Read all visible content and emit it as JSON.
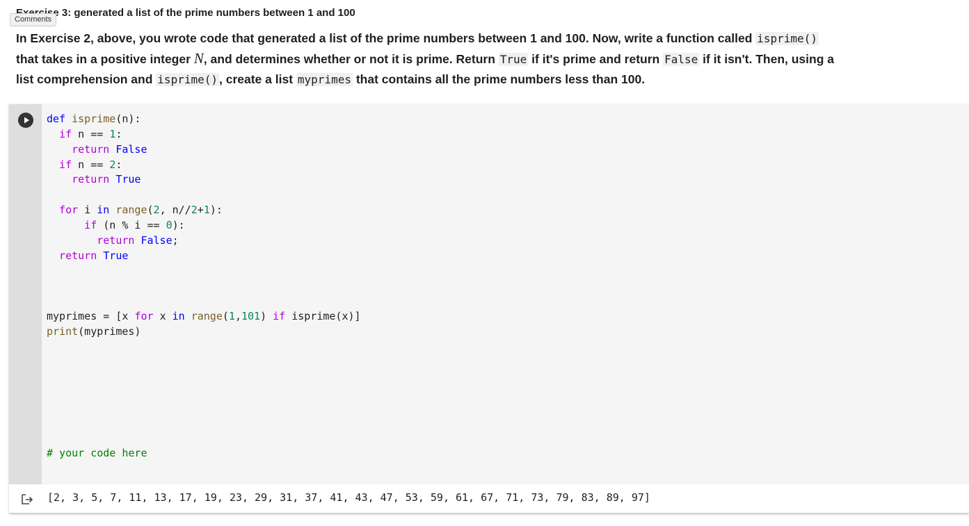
{
  "header": {
    "title": "Exercise 3: generated a list of the prime numbers between 1 and 100",
    "badge": "Comments"
  },
  "description": [
    {
      "text": "In Exercise 2, above, you wrote code that generated a list of the prime numbers between 1 and 100. Now, write a function called "
    },
    {
      "text": "isprime()",
      "style": "code"
    },
    {
      "text": " that takes in a positive integer "
    },
    {
      "text": "N",
      "style": "math"
    },
    {
      "text": ", and determines whether or not it is prime. Return "
    },
    {
      "text": "True",
      "style": "code"
    },
    {
      "text": " if it's prime and return "
    },
    {
      "text": "False",
      "style": "code"
    },
    {
      "text": " if it isn't. Then, using a list comprehension and "
    },
    {
      "text": "isprime()",
      "style": "code"
    },
    {
      "text": ", create a list "
    },
    {
      "text": "myprimes",
      "style": "code"
    },
    {
      "text": " that contains all the prime numbers less than 100."
    }
  ],
  "cell": {
    "lines": [
      [
        [
          "def ",
          "#0000ff"
        ],
        [
          "isprime",
          "#795e26"
        ],
        [
          "(n):",
          "#1f1f1f"
        ]
      ],
      [
        [
          "  if ",
          "#af00db"
        ],
        [
          "n == ",
          "#1f1f1f"
        ],
        [
          "1",
          "#098658"
        ],
        [
          ":",
          "#1f1f1f"
        ]
      ],
      [
        [
          "    return ",
          "#af00db"
        ],
        [
          "False",
          "#0000ff"
        ]
      ],
      [
        [
          "  if ",
          "#af00db"
        ],
        [
          "n == ",
          "#1f1f1f"
        ],
        [
          "2",
          "#098658"
        ],
        [
          ":",
          "#1f1f1f"
        ]
      ],
      [
        [
          "    return ",
          "#af00db"
        ],
        [
          "True",
          "#0000ff"
        ]
      ],
      [],
      [
        [
          "  for ",
          "#af00db"
        ],
        [
          "i ",
          "#1f1f1f"
        ],
        [
          "in ",
          "#0000ff"
        ],
        [
          "range",
          "#795e26"
        ],
        [
          "(",
          "#1f1f1f"
        ],
        [
          "2",
          "#098658"
        ],
        [
          ", n//",
          "#1f1f1f"
        ],
        [
          "2",
          "#098658"
        ],
        [
          "+",
          "#1f1f1f"
        ],
        [
          "1",
          "#098658"
        ],
        [
          "):",
          "#1f1f1f"
        ]
      ],
      [
        [
          "      if ",
          "#af00db"
        ],
        [
          "(n % i == ",
          "#1f1f1f"
        ],
        [
          "0",
          "#098658"
        ],
        [
          "):",
          "#1f1f1f"
        ]
      ],
      [
        [
          "        return ",
          "#af00db"
        ],
        [
          "False",
          "#0000ff"
        ],
        [
          ";",
          "#1f1f1f"
        ]
      ],
      [
        [
          "  return ",
          "#af00db"
        ],
        [
          "True",
          "#0000ff"
        ]
      ],
      [],
      [],
      [],
      [
        [
          "myprimes = [x ",
          "#1f1f1f"
        ],
        [
          "for ",
          "#af00db"
        ],
        [
          "x ",
          "#1f1f1f"
        ],
        [
          "in ",
          "#0000ff"
        ],
        [
          "range",
          "#795e26"
        ],
        [
          "(",
          "#1f1f1f"
        ],
        [
          "1",
          "#098658"
        ],
        [
          ",",
          "#1f1f1f"
        ],
        [
          "101",
          "#098658"
        ],
        [
          ") ",
          "#1f1f1f"
        ],
        [
          "if ",
          "#af00db"
        ],
        [
          "isprime(x)]",
          "#1f1f1f"
        ]
      ],
      [
        [
          "print",
          "#795e26"
        ],
        [
          "(myprimes)",
          "#1f1f1f"
        ]
      ],
      [],
      [],
      [],
      [],
      [],
      [],
      [],
      [
        [
          "# your code here",
          "#008000"
        ]
      ]
    ],
    "output": "[2, 3, 5, 7, 11, 13, 17, 19, 23, 29, 31, 37, 41, 43, 47, 53, 59, 61, 67, 71, 73, 79, 83, 89, 97]"
  }
}
